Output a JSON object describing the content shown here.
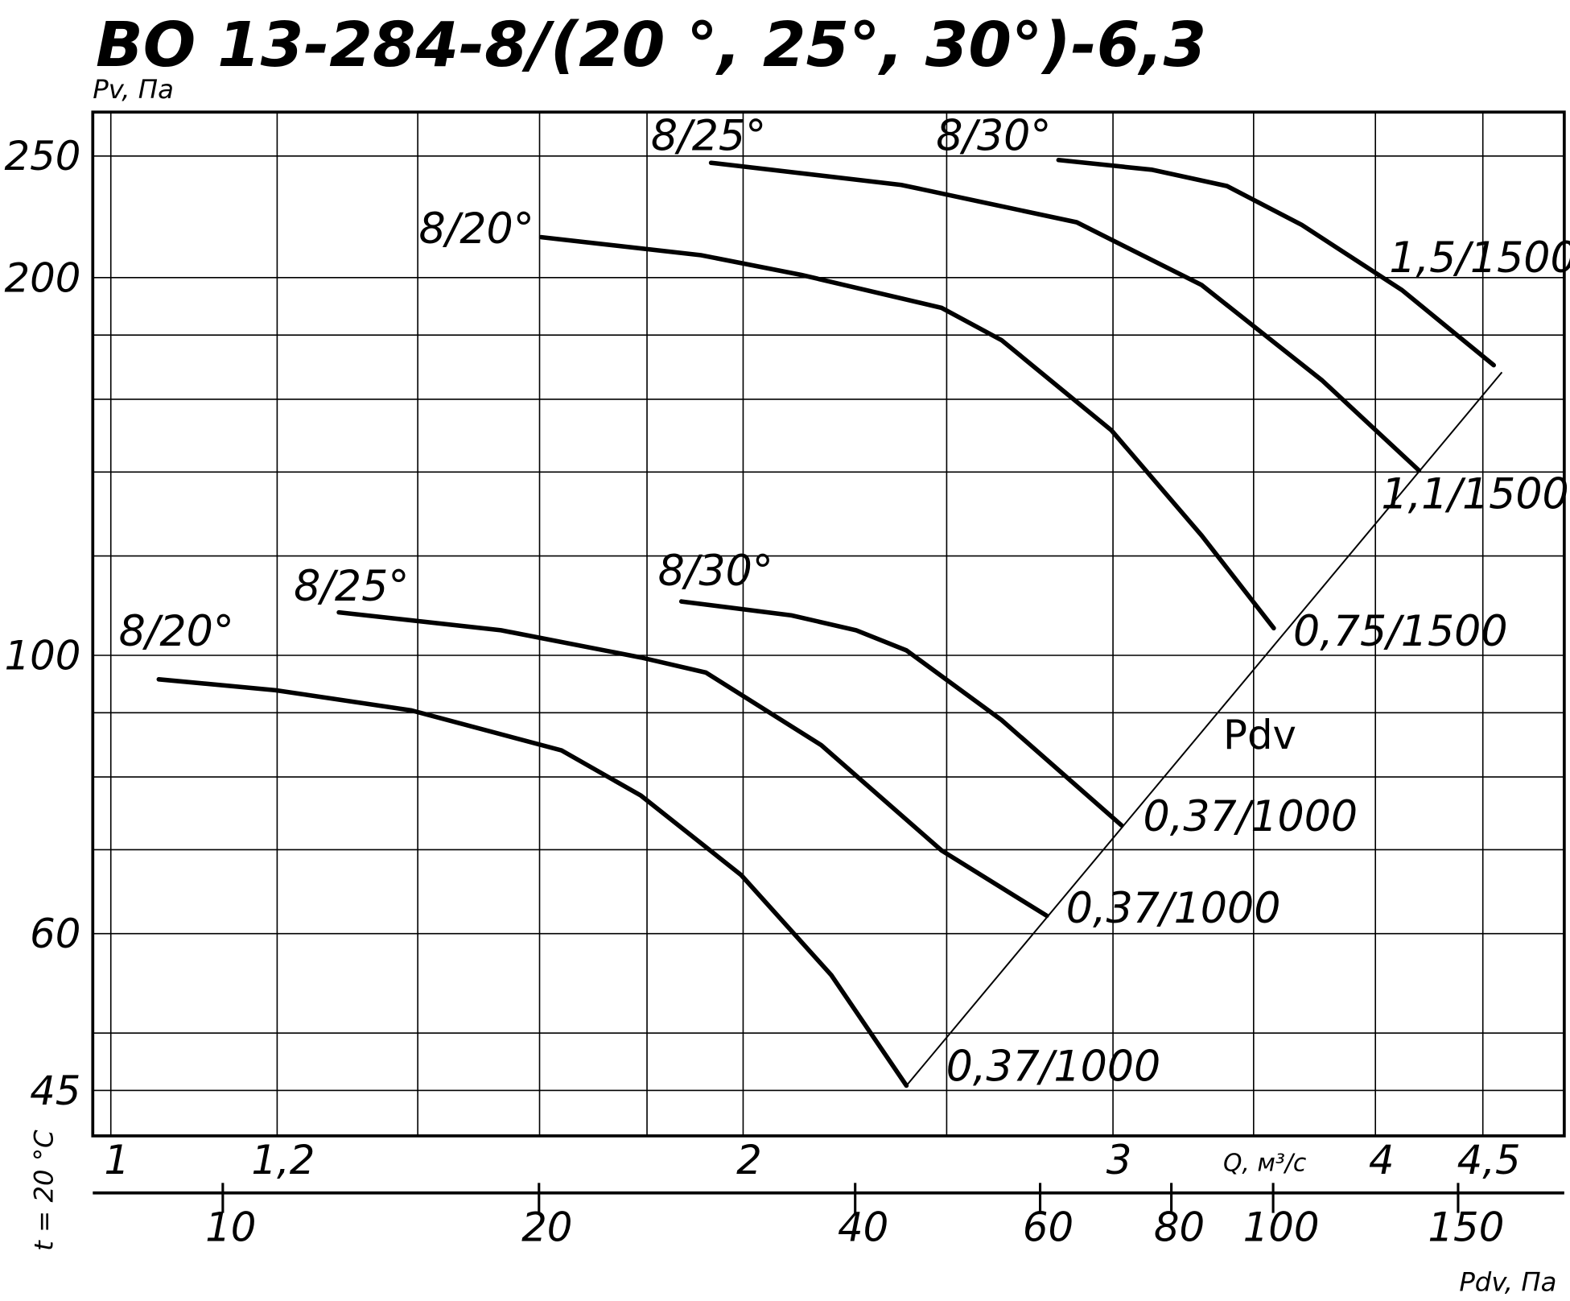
{
  "chart_data": {
    "type": "line",
    "title": "ВО 13-284-8/(20 °, 25°, 30°)-6,3",
    "y_label": "Pv, Па",
    "x_label": "Q, м³/с",
    "x2_label": "Pdv, Па",
    "condition_label": "t = 20 °C",
    "log_x": true,
    "log_y": true,
    "grid": true,
    "xlim": [
      0.9804,
      4.92
    ],
    "ylim": [
      41.4,
      271
    ],
    "xticks": [
      1,
      {
        "value": 1.2,
        "label": "1,2"
      },
      2,
      3,
      4,
      {
        "value": 4.5,
        "label": "4,5"
      }
    ],
    "x_minor_grid": [
      1.4,
      1.6,
      1.8,
      2.5,
      3.5
    ],
    "yticks": [
      45,
      60,
      100,
      200,
      250
    ],
    "y_minor_grid": [
      50,
      70,
      80,
      90,
      120,
      140,
      160,
      180
    ],
    "x2lim": [
      7.52,
      189.3
    ],
    "x2ticks": [
      10,
      20,
      40,
      60,
      80,
      100,
      150
    ],
    "series": [
      {
        "name": "8/20°",
        "end_label": "0,37/1000",
        "color": "#000000",
        "x": [
          1.054,
          1.198,
          1.39,
          1.639,
          1.788,
          1.996,
          2.203,
          2.392
        ],
        "values": [
          95.7,
          93.8,
          90.4,
          84.0,
          77.3,
          66.8,
          55.6,
          45.4
        ]
      },
      {
        "name": "8/25°",
        "end_label": "0,37/1000",
        "color": "#000000",
        "x": [
          1.284,
          1.534,
          1.788,
          1.92,
          2.179,
          2.486,
          2.79
        ],
        "values": [
          108.2,
          104.7,
          99.6,
          96.9,
          84.8,
          69.9,
          62.0
        ]
      },
      {
        "name": "8/30°",
        "end_label": "0,37/1000",
        "color": "#000000",
        "x": [
          1.869,
          2.109,
          2.264,
          2.392,
          2.655,
          3.028
        ],
        "values": [
          110.4,
          107.6,
          104.7,
          100.9,
          88.8,
          73.2
        ]
      },
      {
        "name": "8/20°",
        "end_label": "0,75/1500",
        "color": "#000000",
        "x": [
          1.603,
          1.91,
          2.132,
          2.486,
          2.655,
          2.995,
          3.306,
          3.578
        ],
        "values": [
          215.4,
          208.4,
          201.0,
          189.2,
          178.3,
          151.1,
          124.6,
          105.1
        ]
      },
      {
        "name": "8/25°",
        "end_label": "1,1/1500",
        "color": "#000000",
        "x": [
          1.931,
          2.379,
          2.883,
          3.306,
          3.772,
          4.196
        ],
        "values": [
          246.9,
          237.1,
          221.4,
          197.3,
          165.7,
          140.4
        ]
      },
      {
        "name": "8/30°",
        "end_label": "1,5/1500",
        "color": "#000000",
        "x": [
          2.826,
          3.13,
          3.399,
          3.69,
          4.118,
          4.554
        ],
        "values": [
          248.2,
          243.8,
          236.6,
          220.3,
          195.5,
          170.3
        ]
      }
    ],
    "pdv_line": {
      "name": "Pdv",
      "x": [
        2.392,
        4.595
      ],
      "values": [
        45.4,
        168.1
      ]
    }
  }
}
